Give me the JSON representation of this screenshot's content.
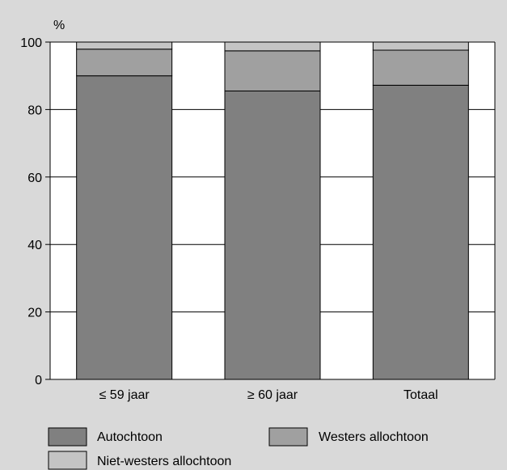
{
  "chart_data": {
    "type": "bar",
    "stacked": true,
    "title": "",
    "ylabel": "%",
    "xlabel": "",
    "ylim": [
      0,
      100
    ],
    "yticks": [
      0,
      20,
      40,
      60,
      80,
      100
    ],
    "grid": true,
    "categories": [
      "≤ 59 jaar",
      "≥ 60 jaar",
      "Totaal"
    ],
    "series": [
      {
        "name": "Autochtoon",
        "values": [
          90,
          85.5,
          87.2
        ],
        "color": "#808080"
      },
      {
        "name": "Westers allochtoon",
        "values": [
          7.9,
          11.9,
          10.4
        ],
        "color": "#a0a0a0"
      },
      {
        "name": "Niet-westers allochtoon",
        "values": [
          2.1,
          2.6,
          2.4
        ],
        "color": "#c4c4c4"
      }
    ],
    "legend_position": "bottom"
  }
}
